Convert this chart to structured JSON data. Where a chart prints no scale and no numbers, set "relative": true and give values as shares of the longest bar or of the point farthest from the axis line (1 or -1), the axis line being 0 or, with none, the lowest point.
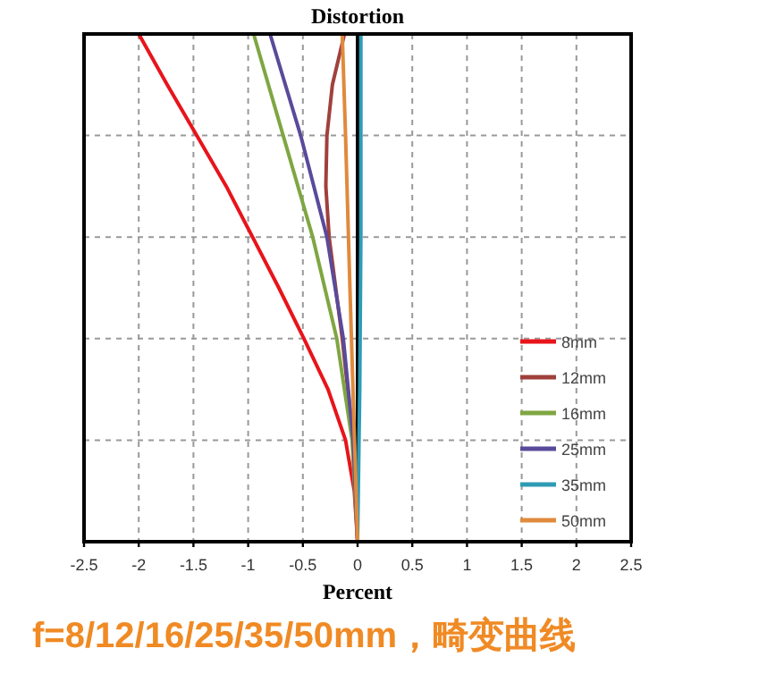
{
  "chart_data": {
    "type": "line",
    "title": "Distortion",
    "xlabel": "Percent",
    "relative": true,
    "xlim": [
      -2.5,
      2.5
    ],
    "xticks": [
      -2.5,
      -2,
      -1.5,
      -1,
      -0.5,
      0,
      0.5,
      1,
      1.5,
      2,
      2.5
    ],
    "tick_labels": "x",
    "grid": true,
    "legend": "bottom right",
    "line_style": "solid",
    "marker": "none",
    "ref_lines": [
      {
        "axis": "x",
        "value": 0,
        "color": "#000000"
      }
    ],
    "annotations": [
      "f=8/12/16/25/35/50mm，畸变曲线"
    ],
    "series": [
      {
        "name": "8mm",
        "color": "#e8141b",
        "x": [
          0,
          -0.03,
          -0.11,
          -0.27,
          -0.49,
          -0.72,
          -0.96,
          -1.2,
          -1.47,
          -1.74,
          -2.0
        ],
        "values": [
          0,
          0.1,
          0.2,
          0.3,
          0.4,
          0.5,
          0.6,
          0.7,
          0.8,
          0.9,
          1
        ]
      },
      {
        "name": "12mm",
        "color": "#a0403c",
        "x": [
          0,
          -0.04,
          -0.14,
          -0.26,
          -0.29,
          -0.28,
          -0.23,
          -0.12
        ],
        "values": [
          0,
          0.2,
          0.4,
          0.6,
          0.7,
          0.8,
          0.9,
          1
        ]
      },
      {
        "name": "16mm",
        "color": "#7fa642",
        "x": [
          0,
          -0.05,
          -0.19,
          -0.41,
          -0.68,
          -0.95
        ],
        "values": [
          0,
          0.2,
          0.4,
          0.6,
          0.8,
          1
        ]
      },
      {
        "name": "25mm",
        "color": "#5a4a9a",
        "x": [
          0,
          -0.04,
          -0.13,
          -0.28,
          -0.52,
          -0.8
        ],
        "values": [
          0,
          0.2,
          0.4,
          0.6,
          0.8,
          1
        ]
      },
      {
        "name": "35mm",
        "color": "#2e9bb5",
        "x": [
          0,
          0.02,
          0.03,
          0.03
        ],
        "values": [
          0,
          0.3,
          0.6,
          1
        ]
      },
      {
        "name": "50mm",
        "color": "#e08a3c",
        "x": [
          0,
          -0.07,
          -0.11,
          -0.14
        ],
        "values": [
          0,
          0.5,
          0.8,
          1
        ]
      }
    ]
  }
}
